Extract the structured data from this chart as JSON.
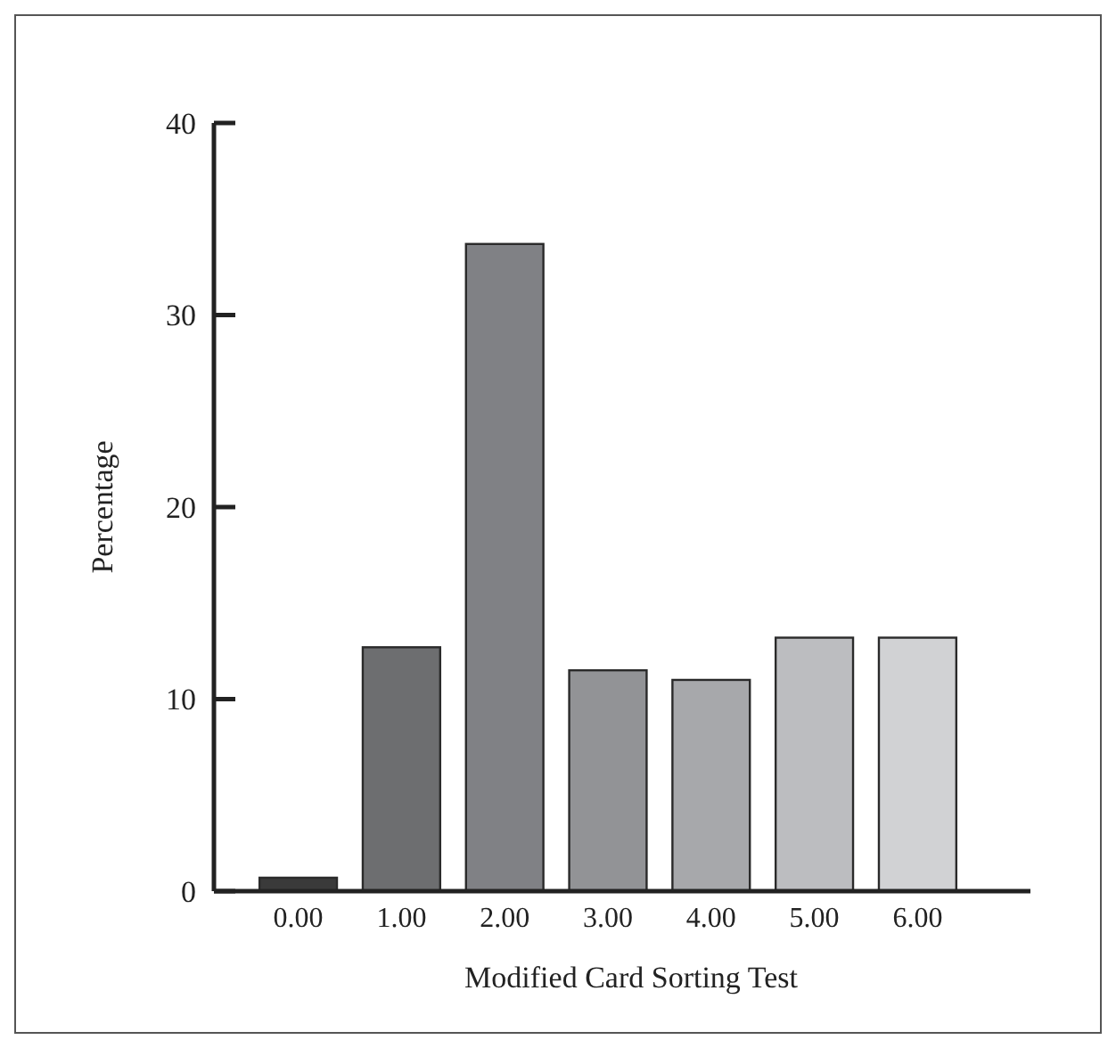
{
  "chart_data": {
    "type": "bar",
    "xlabel": "Modified Card Sorting Test",
    "ylabel": "Percentage",
    "categories": [
      "0.00",
      "1.00",
      "2.00",
      "3.00",
      "4.00",
      "5.00",
      "6.00"
    ],
    "values": [
      0.7,
      12.7,
      33.7,
      11.5,
      11.0,
      13.2,
      13.2
    ],
    "colors": [
      "#3a3a3a",
      "#6d6e70",
      "#808185",
      "#929396",
      "#a7a8ab",
      "#bcbdc0",
      "#d1d2d4"
    ],
    "ylim": [
      0,
      40
    ],
    "yticks": [
      0,
      10,
      20,
      30,
      40
    ],
    "grid": false
  }
}
